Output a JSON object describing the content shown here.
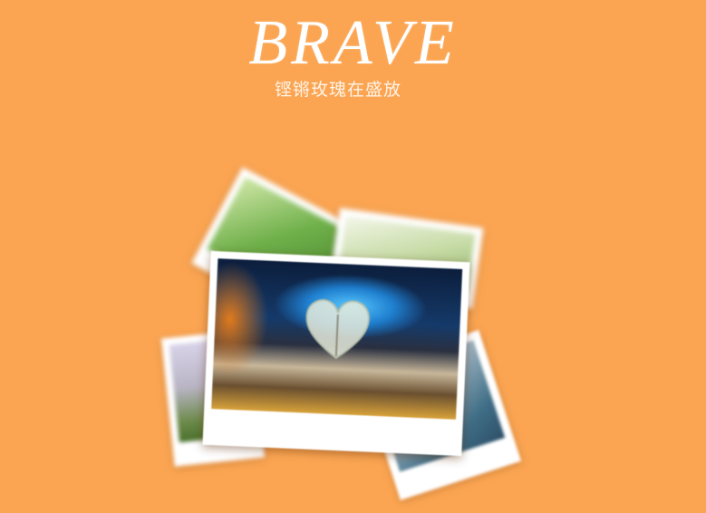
{
  "header": {
    "title": "BRAVE",
    "subtitle": "铿锵玫瑰在盛放"
  },
  "colors": {
    "background": "#fba552",
    "title_text": "#ffffff",
    "photo_border": "#ffffff"
  },
  "photos": [
    {
      "name": "photo-back-left",
      "subject": "green-foliage"
    },
    {
      "name": "photo-back-right",
      "subject": "green-flowers"
    },
    {
      "name": "photo-left-lower",
      "subject": "field-flowers"
    },
    {
      "name": "photo-right-lower",
      "subject": "boardwalk"
    },
    {
      "name": "photo-main",
      "subject": "heart-shaped-book-pages"
    }
  ]
}
